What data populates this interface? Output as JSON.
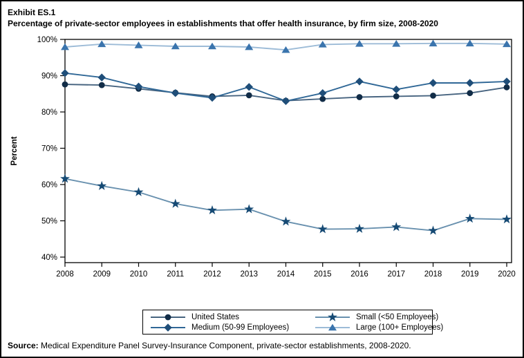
{
  "header": {
    "exhibit": "Exhibit ES.1",
    "title": "Percentage of private-sector employees in establishments that offer health insurance, by firm size, 2008-2020"
  },
  "chart_data": {
    "type": "line",
    "title": "Percentage of private-sector employees in establishments that offer health insurance, by firm size, 2008-2020",
    "xlabel": "",
    "ylabel": "Percent",
    "ylim": [
      40,
      100
    ],
    "ytick_step": 10,
    "ytick_suffix": "%",
    "grid": false,
    "legend_position": "bottom",
    "categories": [
      "2008",
      "2009",
      "2010",
      "2011",
      "2012",
      "2013",
      "2014",
      "2015",
      "2016",
      "2017",
      "2018",
      "2019",
      "2020"
    ],
    "series": [
      {
        "name": "United States",
        "marker": "circle",
        "marker_color": "#112c47",
        "line_color": "#46637f",
        "values": [
          87.6,
          87.4,
          86.4,
          85.3,
          84.3,
          84.6,
          83.1,
          83.6,
          84.1,
          84.3,
          84.5,
          85.2,
          86.8
        ]
      },
      {
        "name": "Medium (50-99 Employees)",
        "marker": "diamond",
        "marker_color": "#1f4e79",
        "line_color": "#2f6796",
        "values": [
          90.7,
          89.5,
          87.0,
          85.2,
          83.9,
          86.9,
          83.0,
          85.2,
          88.4,
          86.2,
          88.0,
          88.0,
          88.4
        ]
      },
      {
        "name": "Small (<50 Employees)",
        "marker": "star",
        "marker_color": "#164a74",
        "line_color": "#6890ae",
        "values": [
          61.6,
          59.6,
          57.9,
          54.7,
          52.9,
          53.2,
          49.8,
          47.7,
          47.8,
          48.3,
          47.3,
          50.6,
          50.4
        ]
      },
      {
        "name": "Large (100+ Employees)",
        "marker": "triangle",
        "marker_color": "#3a74ad",
        "line_color": "#9cbbd7",
        "values": [
          97.9,
          98.7,
          98.4,
          98.1,
          98.1,
          97.9,
          97.1,
          98.6,
          98.8,
          98.8,
          98.9,
          98.9,
          98.7
        ]
      }
    ]
  },
  "source": {
    "label": "Source:",
    "text": " Medical Expenditure Panel Survey-Insurance Component, private-sector establishments, 2008-2020."
  }
}
